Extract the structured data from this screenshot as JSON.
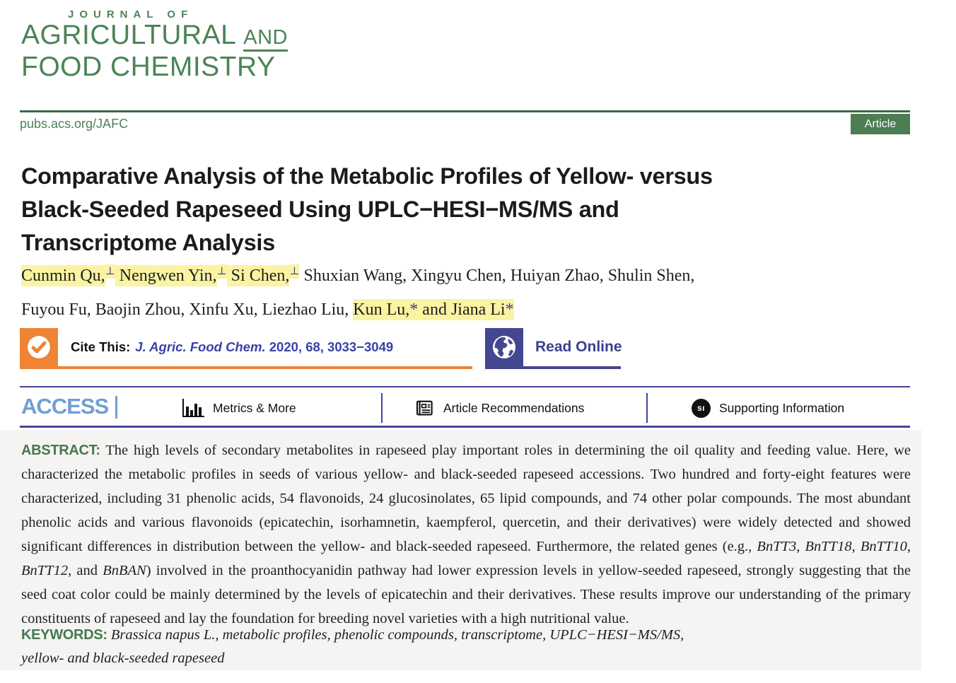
{
  "journal": {
    "kicker": "JOURNAL OF",
    "name_line1_main": "AGRICULTURAL",
    "name_line1_and": "AND",
    "name_line2": "FOOD CHEMISTRY",
    "url": "pubs.acs.org/JAFC",
    "badge": "Article"
  },
  "article": {
    "title_lines": [
      "Comparative Analysis of the Metabolic Profiles of Yellow- versus",
      "Black-Seeded Rapeseed Using UPLC−HESI−MS/MS and",
      "Transcriptome Analysis"
    ],
    "authors_line1": [
      {
        "t": "Cunmin Qu,",
        "hl": true
      },
      {
        "t": "⊥",
        "sup": true,
        "hl": true,
        "navy": true
      },
      {
        "t": " Nengwen Yin,",
        "hl": true
      },
      {
        "t": "⊥",
        "sup": true,
        "hl": true,
        "navy": true
      },
      {
        "t": " Si Chen,",
        "hl": true
      },
      {
        "t": "⊥",
        "sup": true,
        "hl": true,
        "navy": true
      },
      {
        "t": " Shuxian Wang, Xingyu Chen, Huiyan Zhao, Shulin Shen,"
      }
    ],
    "authors_line2": [
      {
        "t": "Fuyou Fu, Baojin Zhou, Xinfu Xu, Liezhao Liu, "
      },
      {
        "t": "Kun Lu,",
        "hl": true
      },
      {
        "t": "*",
        "hl": true,
        "navy": true
      },
      {
        "t": " and Jiana Li",
        "hl": true
      },
      {
        "t": "*",
        "hl": true,
        "navy": true
      }
    ]
  },
  "cite": {
    "label": "Cite This:",
    "citation": [
      {
        "t": "J. Agric. Food Chem.",
        "i": true
      },
      {
        "t": " 2020, 68, 3033−3049"
      }
    ],
    "read_online": "Read Online"
  },
  "access_bar": {
    "access": "ACCESS",
    "items": [
      {
        "icon": "bar-chart-icon",
        "label": "Metrics & More"
      },
      {
        "icon": "newspaper-icon",
        "label": "Article Recommendations"
      },
      {
        "icon": "si-icon",
        "label": "Supporting Information",
        "icon_text": "sı"
      }
    ]
  },
  "abstract": {
    "label": "ABSTRACT:",
    "segments": [
      {
        "t": " The high levels of secondary metabolites in rapeseed play important roles in determining the oil quality and feeding value. Here, we characterized the metabolic profiles in seeds of various yellow- and black-seeded rapeseed accessions. Two hundred and forty-eight features were characterized, including 31 phenolic acids, 54 flavonoids, 24 glucosinolates, 65 lipid compounds, and 74 other polar compounds. The most abundant phenolic acids and various flavonoids (epicatechin, isorhamnetin, kaempferol, quercetin, and their derivatives) were widely detected and showed significant differences in distribution between the yellow- and black-seeded rapeseed. Furthermore, the related genes (e.g., "
      },
      {
        "t": "BnTT3",
        "i": true
      },
      {
        "t": ", "
      },
      {
        "t": "BnTT18",
        "i": true
      },
      {
        "t": ", "
      },
      {
        "t": "BnTT10",
        "i": true
      },
      {
        "t": ", "
      },
      {
        "t": "BnTT12",
        "i": true
      },
      {
        "t": ", and "
      },
      {
        "t": "BnBAN",
        "i": true
      },
      {
        "t": ") involved in the proanthocyanidin pathway had lower expression levels in yellow-seeded rapeseed, strongly suggesting that the seed coat color could be mainly determined by the levels of epicatechin and their derivatives. These results improve our understanding of the primary constituents of rapeseed and lay the foundation for breeding novel varieties with a high nutritional value."
      }
    ]
  },
  "keywords": {
    "label": "KEYWORDS:",
    "segments": [
      {
        "t": " Brassica napus L., metabolic profiles, phenolic compounds, transcriptome, UPLC−HESI−MS/MS,",
        "i": true
      },
      {
        "br": true
      },
      {
        "t": "yellow- and black-seeded rapeseed",
        "i": true
      }
    ]
  },
  "colors": {
    "journal_green": "#4B8456",
    "rule_green": "#3A6B45",
    "badge_green": "#4C7D53",
    "navy_rule": "#44449A",
    "access_blue": "#6FA0D4",
    "cite_blue": "#3A41A8",
    "read_online_indigo": "#44478F",
    "cite_orange": "#EE8434",
    "highlight_yellow": "#FAF3A2",
    "abstract_bg": "#F5F4F2",
    "label_green": "#45784E"
  }
}
